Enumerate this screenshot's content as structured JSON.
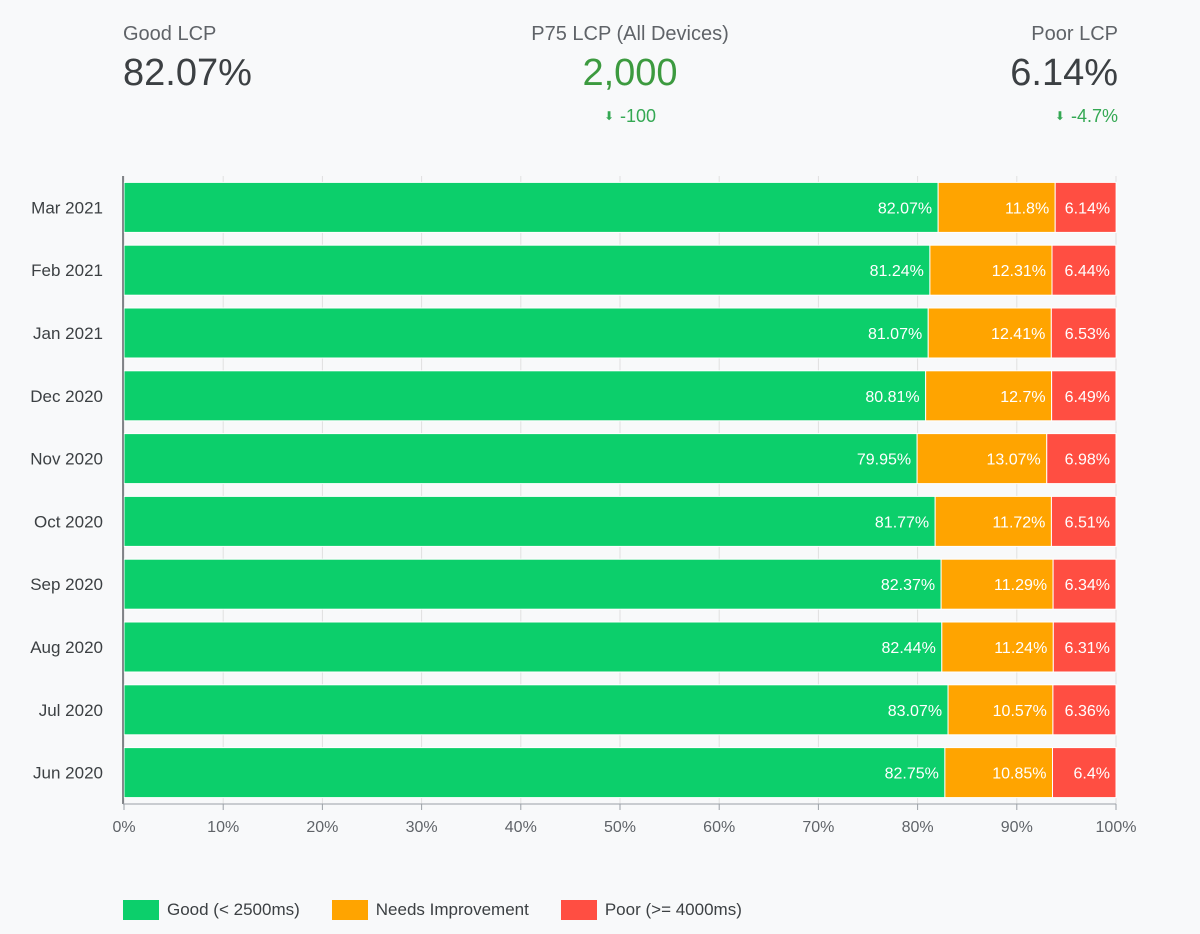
{
  "kpis": {
    "good": {
      "label": "Good LCP",
      "value": "82.07%"
    },
    "p75": {
      "label": "P75 LCP (All Devices)",
      "value": "2,000",
      "delta": "-100",
      "arrow": "⬇"
    },
    "poor": {
      "label": "Poor LCP",
      "value": "6.14%",
      "delta": "-4.7%",
      "arrow": "⬇"
    }
  },
  "colors": {
    "good": "#0ccf6b",
    "needs": "#ffa400",
    "poor": "#ff4e42",
    "text": "#3c4043",
    "axis": "#5f6368"
  },
  "chart_data": {
    "type": "bar",
    "orientation": "horizontal",
    "stacked": true,
    "categories": [
      "Mar 2021",
      "Feb 2021",
      "Jan 2021",
      "Dec 2020",
      "Nov 2020",
      "Oct 2020",
      "Sep 2020",
      "Aug 2020",
      "Jul 2020",
      "Jun 2020"
    ],
    "series": [
      {
        "name": "Good (< 2500ms)",
        "key": "good",
        "values": [
          82.07,
          81.24,
          81.07,
          80.81,
          79.95,
          81.77,
          82.37,
          82.44,
          83.07,
          82.75
        ]
      },
      {
        "name": "Needs Improvement",
        "key": "needs",
        "values": [
          11.8,
          12.31,
          12.41,
          12.7,
          13.07,
          11.72,
          11.29,
          11.24,
          10.57,
          10.85
        ]
      },
      {
        "name": "Poor (>= 4000ms)",
        "key": "poor",
        "values": [
          6.14,
          6.44,
          6.53,
          6.49,
          6.98,
          6.51,
          6.34,
          6.31,
          6.36,
          6.4
        ]
      }
    ],
    "xlim": [
      0,
      100
    ],
    "xticks": [
      "0%",
      "10%",
      "20%",
      "30%",
      "40%",
      "50%",
      "60%",
      "70%",
      "80%",
      "90%",
      "100%"
    ],
    "legend_position": "bottom-left"
  }
}
